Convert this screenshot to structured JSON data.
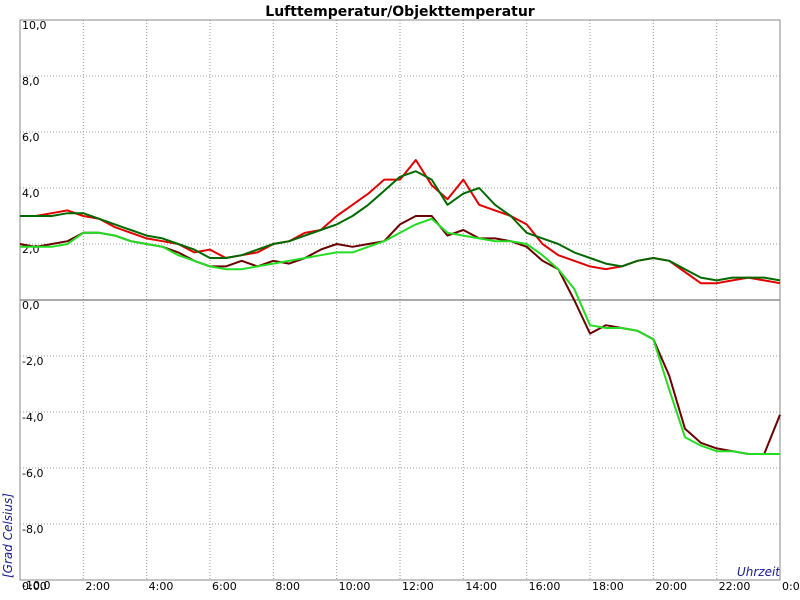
{
  "chart_data": {
    "type": "line",
    "title": "Lufttemperatur/Objekttemperatur",
    "y_label": "[Grad Celsius]",
    "x_label": "Uhrzeit",
    "x": [
      0,
      0.5,
      1,
      1.5,
      2,
      2.5,
      3,
      3.5,
      4,
      4.5,
      5,
      5.5,
      6,
      6.5,
      7,
      7.5,
      8,
      8.5,
      9,
      9.5,
      10,
      10.5,
      11,
      11.5,
      12,
      12.5,
      13,
      13.5,
      14,
      14.5,
      15,
      15.5,
      16,
      16.5,
      17,
      17.5,
      18,
      18.5,
      19,
      19.5,
      20,
      20.5,
      21,
      21.5,
      22,
      22.5,
      23,
      23.5,
      24
    ],
    "xlim": [
      0,
      24
    ],
    "xticks": [
      {
        "value": 0,
        "label": "0:00"
      },
      {
        "value": 2,
        "label": "2:00"
      },
      {
        "value": 4,
        "label": "4:00"
      },
      {
        "value": 6,
        "label": "6:00"
      },
      {
        "value": 8,
        "label": "8:00"
      },
      {
        "value": 10,
        "label": "10:00"
      },
      {
        "value": 12,
        "label": "12:00"
      },
      {
        "value": 14,
        "label": "14:00"
      },
      {
        "value": 16,
        "label": "16:00"
      },
      {
        "value": 18,
        "label": "18:00"
      },
      {
        "value": 20,
        "label": "20:00"
      },
      {
        "value": 22,
        "label": "22:00"
      },
      {
        "value": 24,
        "label": "0:00"
      }
    ],
    "ylim": [
      -10,
      10
    ],
    "yticks": [
      {
        "value": 10,
        "label": "10,0"
      },
      {
        "value": 8,
        "label": "8,0"
      },
      {
        "value": 6,
        "label": "6,0"
      },
      {
        "value": 4,
        "label": "4,0"
      },
      {
        "value": 2,
        "label": "2,0"
      },
      {
        "value": 0,
        "label": "0,0"
      },
      {
        "value": -2,
        "label": "-2,0"
      },
      {
        "value": -4,
        "label": "-4,0"
      },
      {
        "value": -6,
        "label": "-6,0"
      },
      {
        "value": -8,
        "label": "-8,0"
      },
      {
        "value": -10,
        "label": "-10,0"
      }
    ],
    "grid": true,
    "series": [
      {
        "color": "#e00000",
        "values": [
          3.0,
          3.0,
          3.1,
          3.2,
          3.0,
          2.9,
          2.6,
          2.4,
          2.2,
          2.1,
          2.0,
          1.7,
          1.8,
          1.5,
          1.6,
          1.7,
          2.0,
          2.1,
          2.4,
          2.5,
          3.0,
          3.4,
          3.8,
          4.3,
          4.3,
          5.0,
          4.1,
          3.6,
          4.3,
          3.4,
          3.2,
          3.0,
          2.7,
          2.0,
          1.6,
          1.4,
          1.2,
          1.1,
          1.2,
          1.4,
          1.5,
          1.4,
          1.0,
          0.6,
          0.6,
          0.7,
          0.8,
          0.7,
          0.6
        ]
      },
      {
        "color": "#006a00",
        "values": [
          3.0,
          3.0,
          3.0,
          3.1,
          3.1,
          2.9,
          2.7,
          2.5,
          2.3,
          2.2,
          2.0,
          1.8,
          1.5,
          1.5,
          1.6,
          1.8,
          2.0,
          2.1,
          2.3,
          2.5,
          2.7,
          3.0,
          3.4,
          3.9,
          4.4,
          4.6,
          4.3,
          3.4,
          3.8,
          4.0,
          3.4,
          3.0,
          2.4,
          2.2,
          2.0,
          1.7,
          1.5,
          1.3,
          1.2,
          1.4,
          1.5,
          1.4,
          1.1,
          0.8,
          0.7,
          0.8,
          0.8,
          0.8,
          0.7
        ]
      },
      {
        "color": "#6a0000",
        "values": [
          2.0,
          1.9,
          2.0,
          2.1,
          2.4,
          2.4,
          2.3,
          2.1,
          2.0,
          1.9,
          1.7,
          1.4,
          1.2,
          1.2,
          1.4,
          1.2,
          1.4,
          1.3,
          1.5,
          1.8,
          2.0,
          1.9,
          2.0,
          2.1,
          2.7,
          3.0,
          3.0,
          2.3,
          2.5,
          2.2,
          2.2,
          2.1,
          1.9,
          1.4,
          1.1,
          0.0,
          -1.2,
          -0.9,
          -1.0,
          -1.1,
          -1.4,
          -2.7,
          -4.6,
          -5.1,
          -5.3,
          -5.4,
          -5.5,
          -5.5,
          -4.1
        ]
      },
      {
        "color": "#22dd22",
        "values": [
          1.9,
          1.9,
          1.9,
          2.0,
          2.4,
          2.4,
          2.3,
          2.1,
          2.0,
          1.9,
          1.6,
          1.4,
          1.2,
          1.1,
          1.1,
          1.2,
          1.3,
          1.4,
          1.5,
          1.6,
          1.7,
          1.7,
          1.9,
          2.1,
          2.4,
          2.7,
          2.9,
          2.4,
          2.3,
          2.2,
          2.1,
          2.1,
          2.0,
          1.6,
          1.1,
          0.4,
          -0.9,
          -1.0,
          -1.0,
          -1.1,
          -1.4,
          -3.2,
          -4.9,
          -5.2,
          -5.4,
          -5.4,
          -5.5,
          -5.5,
          -5.5
        ]
      }
    ]
  }
}
